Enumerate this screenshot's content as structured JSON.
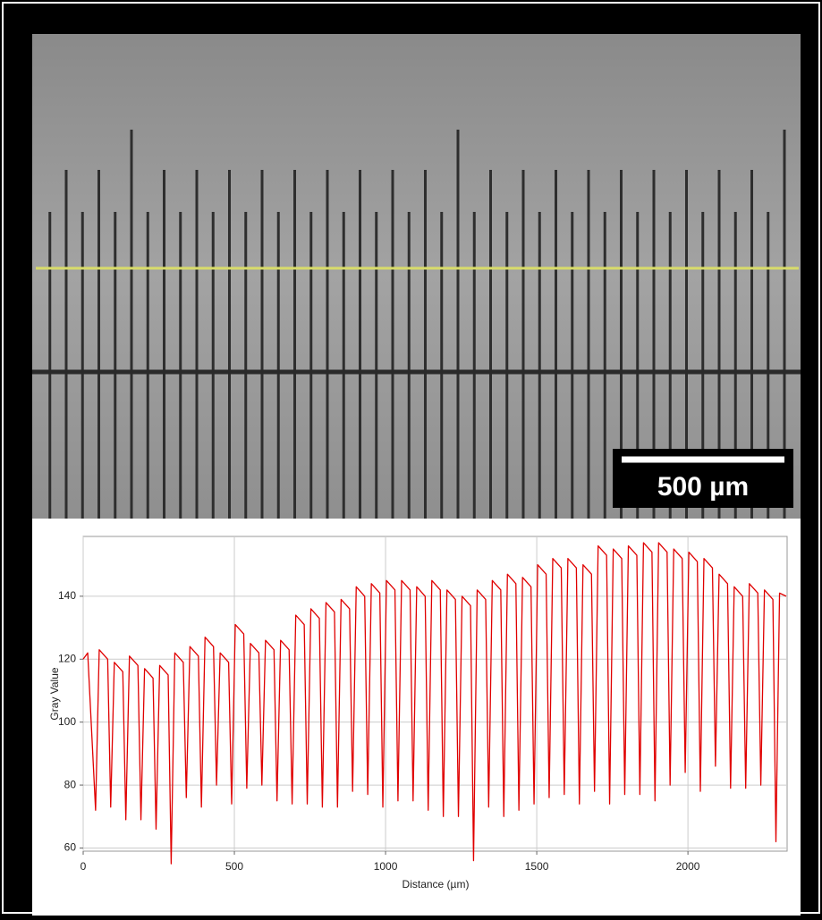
{
  "image": {
    "scale_bar": "500 µm"
  },
  "chart_data": {
    "type": "line",
    "x_label": "Distance (µm)",
    "y_label": "Gray Value",
    "color": "#e00000",
    "grid": true,
    "xlim": [
      0,
      2328
    ],
    "ylim": [
      59,
      159
    ],
    "xticks": [
      0,
      500,
      1000,
      1500,
      2000
    ],
    "yticks": [
      60,
      80,
      100,
      120,
      140
    ],
    "x": [
      0,
      15,
      41,
      53,
      81,
      91,
      103,
      131,
      141,
      153,
      181,
      191,
      203,
      231,
      241,
      253,
      281,
      291,
      303,
      331,
      341,
      353,
      381,
      391,
      403,
      431,
      441,
      453,
      481,
      491,
      503,
      531,
      541,
      553,
      581,
      591,
      603,
      631,
      641,
      653,
      681,
      691,
      703,
      731,
      741,
      753,
      781,
      791,
      803,
      831,
      841,
      853,
      881,
      891,
      903,
      931,
      941,
      953,
      981,
      991,
      1003,
      1031,
      1041,
      1053,
      1081,
      1091,
      1103,
      1131,
      1141,
      1153,
      1181,
      1191,
      1203,
      1231,
      1241,
      1253,
      1281,
      1291,
      1303,
      1331,
      1341,
      1353,
      1381,
      1391,
      1403,
      1431,
      1441,
      1453,
      1481,
      1491,
      1503,
      1531,
      1541,
      1553,
      1581,
      1591,
      1603,
      1631,
      1641,
      1653,
      1681,
      1691,
      1703,
      1731,
      1741,
      1753,
      1781,
      1791,
      1803,
      1831,
      1841,
      1853,
      1881,
      1891,
      1903,
      1931,
      1941,
      1953,
      1981,
      1991,
      2003,
      2031,
      2041,
      2053,
      2081,
      2091,
      2103,
      2131,
      2141,
      2153,
      2181,
      2191,
      2203,
      2231,
      2241,
      2253,
      2281,
      2291,
      2303,
      2325
    ],
    "values": [
      120,
      122,
      72,
      123,
      120,
      73,
      119,
      116,
      69,
      121,
      118,
      69,
      117,
      114,
      66,
      118,
      115,
      55,
      122,
      119,
      76,
      124,
      121,
      73,
      127,
      124,
      80,
      122,
      119,
      74,
      131,
      128,
      79,
      125,
      122,
      80,
      126,
      123,
      75,
      126,
      123,
      74,
      134,
      131,
      74,
      136,
      133,
      73,
      138,
      135,
      73,
      139,
      136,
      78,
      143,
      140,
      77,
      144,
      141,
      73,
      145,
      142,
      75,
      145,
      142,
      75,
      143,
      140,
      72,
      145,
      142,
      70,
      142,
      139,
      70,
      140,
      137,
      56,
      142,
      139,
      73,
      145,
      142,
      70,
      147,
      144,
      72,
      146,
      143,
      74,
      150,
      147,
      76,
      152,
      149,
      77,
      152,
      149,
      74,
      150,
      147,
      78,
      156,
      153,
      74,
      155,
      152,
      77,
      156,
      153,
      77,
      157,
      154,
      75,
      157,
      154,
      80,
      155,
      152,
      84,
      154,
      151,
      78,
      152,
      149,
      86,
      147,
      144,
      79,
      143,
      140,
      79,
      144,
      141,
      80,
      142,
      139,
      62,
      141,
      140
    ]
  }
}
